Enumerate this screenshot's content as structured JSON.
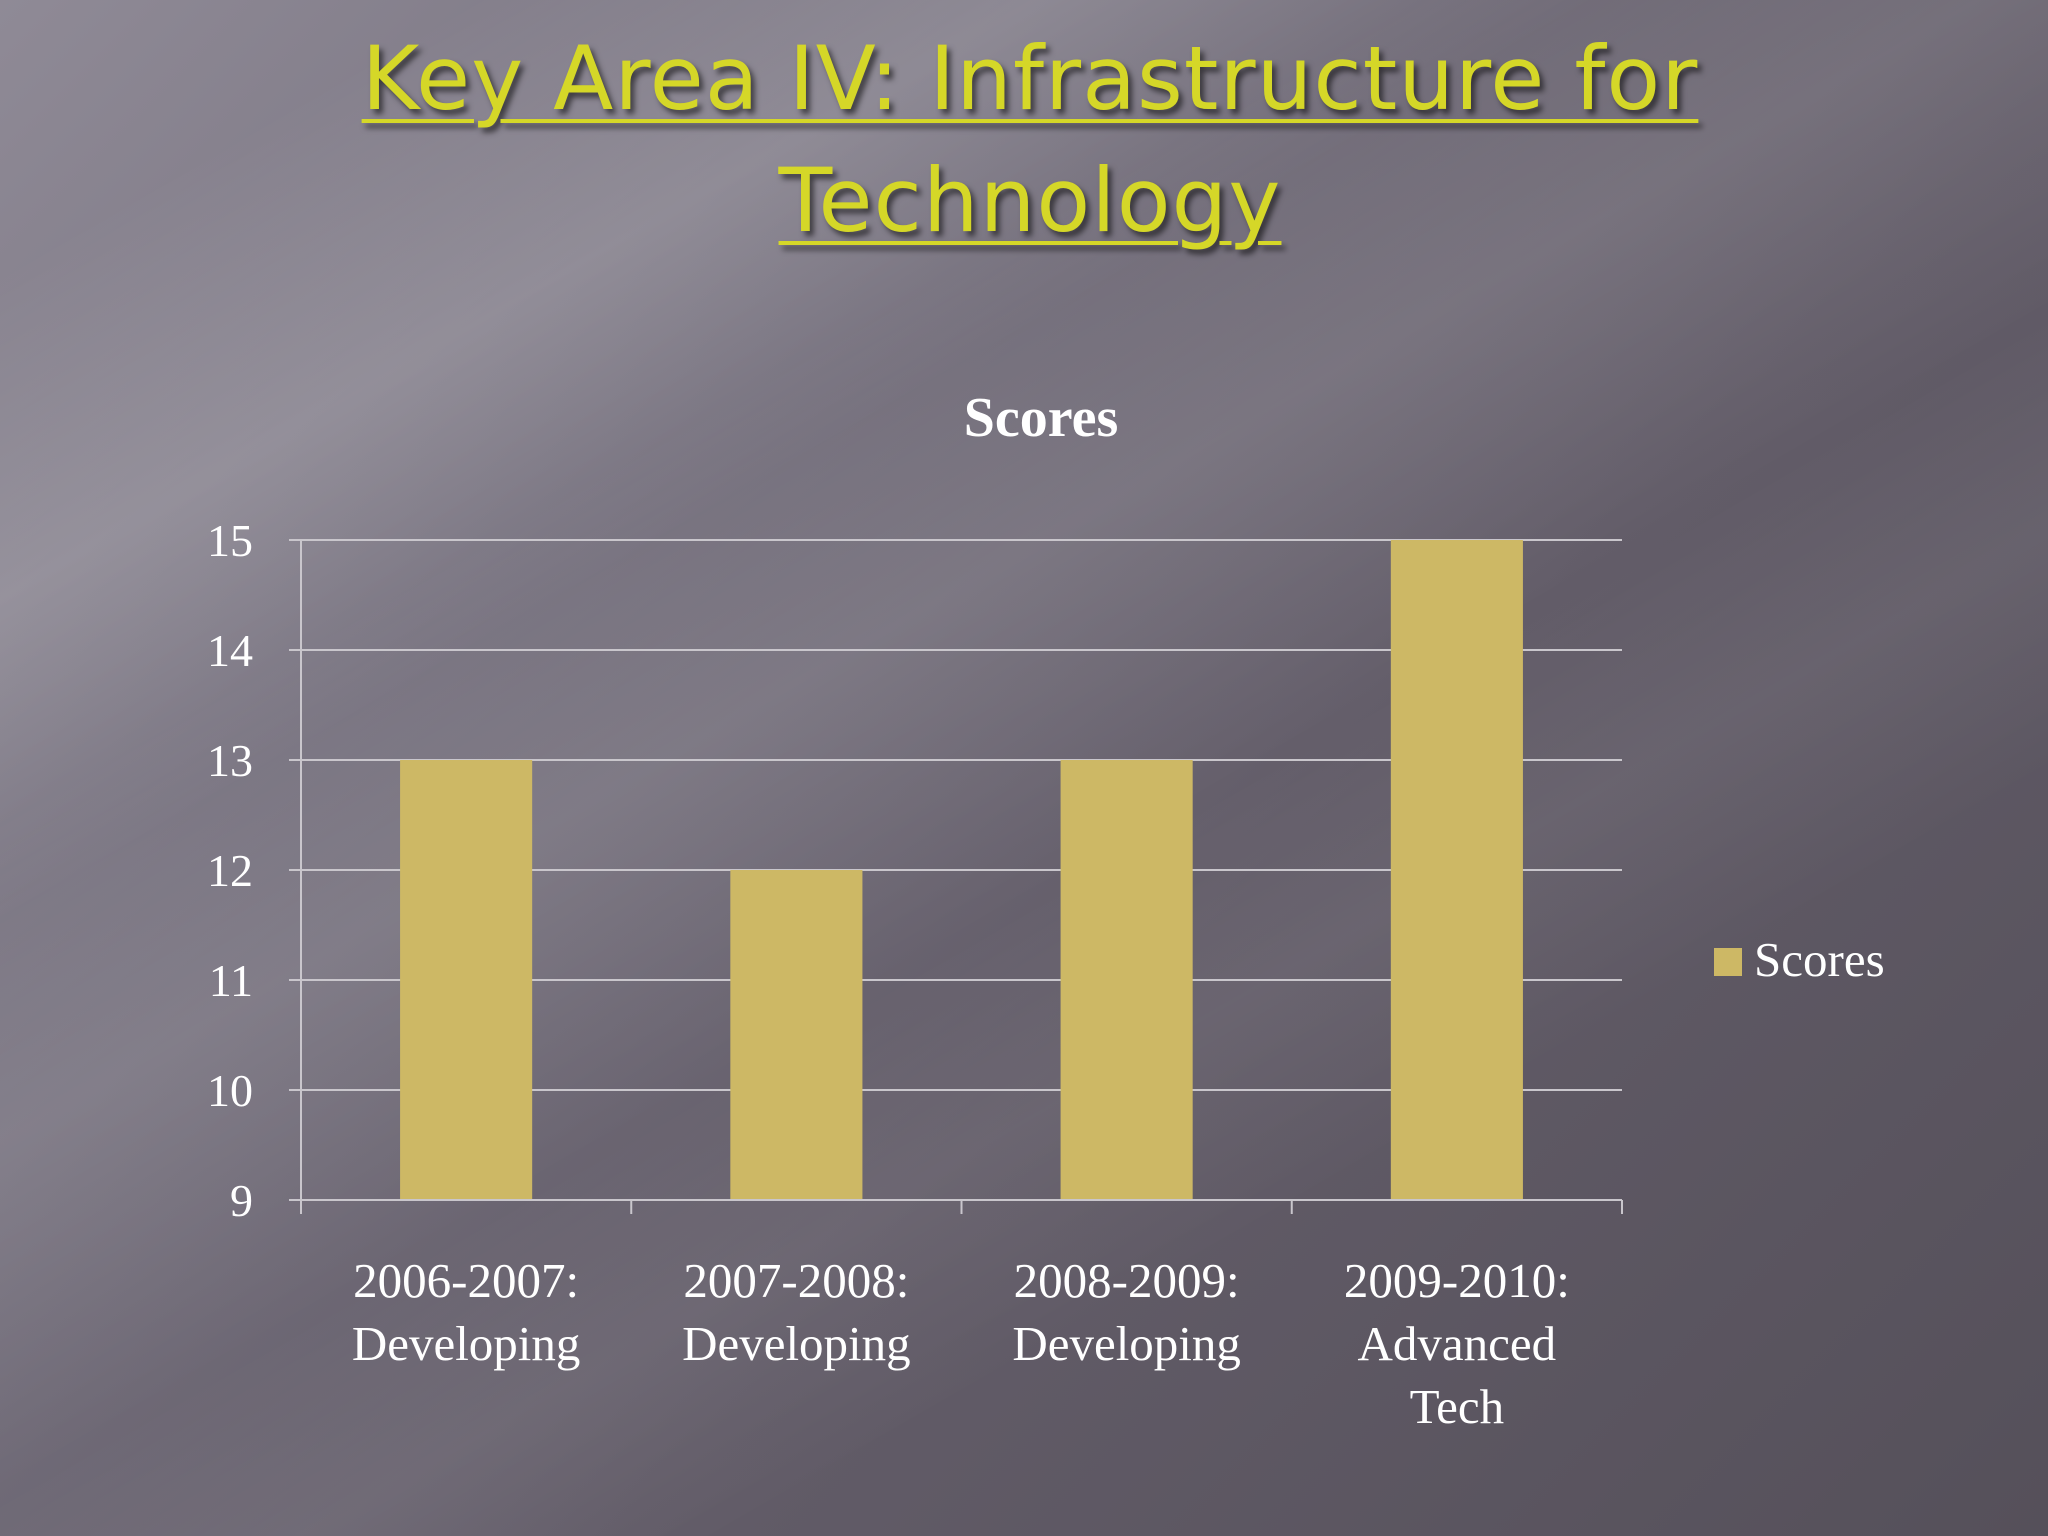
{
  "slide": {
    "title_line1": "Key Area IV: Infrastructure for",
    "title_line2": "Technology"
  },
  "colors": {
    "title": "#d5d728",
    "bar": "#cdb865",
    "text": "#ffffff",
    "grid": "#c9c6cc"
  },
  "chart_data": {
    "type": "bar",
    "title": "Scores",
    "categories": [
      [
        "2006-2007:",
        "Developing"
      ],
      [
        "2007-2008:",
        "Developing"
      ],
      [
        "2008-2009:",
        "Developing"
      ],
      [
        "2009-2010:",
        "Advanced",
        "Tech"
      ]
    ],
    "series": [
      {
        "name": "Scores",
        "values": [
          13,
          12,
          13,
          15
        ]
      }
    ],
    "ylim": [
      9,
      15
    ],
    "yticks": [
      9,
      10,
      11,
      12,
      13,
      14,
      15
    ],
    "grid": true,
    "legend": "right"
  }
}
